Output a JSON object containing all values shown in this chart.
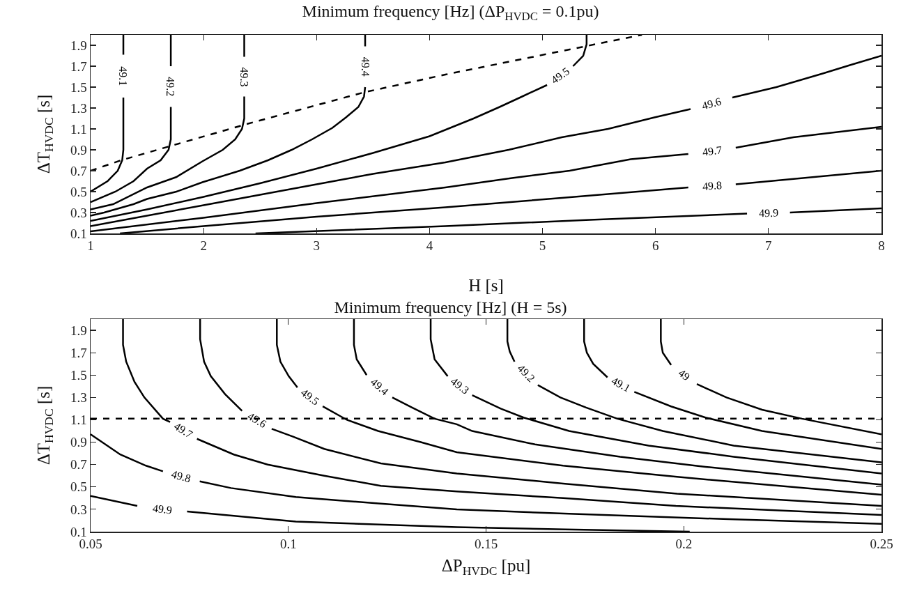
{
  "chart_data": [
    {
      "type": "line",
      "title": "Minimum frequency [Hz] (ΔP$_{HVDC}$ = 0.1pu)",
      "xlabel": "H [s]",
      "ylabel": "ΔT$_{HVDC}$ [s]",
      "xlim": [
        1,
        8
      ],
      "xticks": [
        1,
        2,
        3,
        4,
        5,
        6,
        7,
        8
      ],
      "ylim": [
        0.1,
        2.0
      ],
      "yticks": [
        0.1,
        0.3,
        0.5,
        0.7,
        0.9,
        1.1,
        1.3,
        1.5,
        1.7,
        1.9
      ],
      "grid": false,
      "line_style": "solid",
      "series": [
        {
          "name": "49.1",
          "color": "#000000",
          "x": [
            1,
            1.15,
            1.24,
            1.28,
            1.29,
            1.29,
            null,
            1.29,
            1.29
          ],
          "values": [
            0.5,
            0.6,
            0.7,
            0.8,
            0.9,
            1.4,
            null,
            1.81,
            2.0
          ]
        },
        {
          "name": "49.2",
          "color": "#000000",
          "x": [
            1,
            1.22,
            1.38,
            1.5,
            1.62,
            1.69,
            1.71,
            1.71,
            null,
            1.71,
            1.71
          ],
          "values": [
            0.4,
            0.5,
            0.6,
            0.72,
            0.8,
            0.9,
            1.0,
            1.31,
            null,
            1.7,
            2.0
          ]
        },
        {
          "name": "49.3",
          "color": "#000000",
          "x": [
            1,
            1.2,
            1.5,
            1.76,
            1.99,
            2.17,
            2.28,
            2.34,
            2.36,
            2.36,
            null,
            2.36,
            2.36
          ],
          "values": [
            0.33,
            0.38,
            0.54,
            0.64,
            0.79,
            0.9,
            1.0,
            1.1,
            1.2,
            1.41,
            null,
            1.79,
            2.0
          ]
        },
        {
          "name": "49.4",
          "color": "#000000",
          "x": [
            1,
            1.12,
            1.38,
            1.5,
            1.76,
            1.99,
            2.32,
            2.57,
            2.78,
            2.96,
            3.14,
            3.26,
            3.37,
            3.42,
            3.43,
            null,
            3.43,
            3.43
          ],
          "values": [
            0.27,
            0.3,
            0.38,
            0.43,
            0.5,
            0.59,
            0.7,
            0.8,
            0.9,
            1.0,
            1.11,
            1.21,
            1.31,
            1.41,
            1.5,
            null,
            1.89,
            2.0
          ]
        },
        {
          "name": "49.5",
          "color": "#000000",
          "x": [
            1,
            1.5,
            2,
            2.5,
            3,
            3.5,
            4,
            4.39,
            4.62,
            4.82,
            5.04,
            null,
            5.27,
            5.36,
            5.39,
            5.39
          ],
          "values": [
            0.22,
            0.33,
            0.45,
            0.58,
            0.72,
            0.87,
            1.03,
            1.2,
            1.31,
            1.41,
            1.52,
            null,
            1.7,
            1.8,
            1.91,
            2.0
          ]
        },
        {
          "name": "49.6",
          "color": "#000000",
          "x": [
            1,
            1.5,
            2,
            2.5,
            3,
            3.5,
            4.14,
            4.7,
            5.17,
            5.58,
            5.99,
            6.31,
            null,
            6.68,
            7.07,
            7.48,
            7.72,
            8
          ],
          "values": [
            0.17,
            0.27,
            0.37,
            0.47,
            0.57,
            0.67,
            0.78,
            0.9,
            1.02,
            1.1,
            1.21,
            1.29,
            null,
            1.4,
            1.5,
            1.63,
            1.71,
            1.8
          ]
        },
        {
          "name": "49.7",
          "color": "#000000",
          "x": [
            1,
            2,
            3,
            4.14,
            4.73,
            5.24,
            5.78,
            6.29,
            null,
            6.71,
            7.22,
            8
          ],
          "values": [
            0.12,
            0.25,
            0.39,
            0.54,
            0.63,
            0.7,
            0.81,
            0.86,
            null,
            0.92,
            1.02,
            1.12
          ]
        },
        {
          "name": "49.8",
          "color": "#000000",
          "x": [
            1.26,
            2,
            3,
            4.14,
            5.17,
            6.29,
            null,
            6.71,
            8
          ],
          "values": [
            0.1,
            0.17,
            0.26,
            0.35,
            0.44,
            0.54,
            null,
            0.57,
            0.7
          ]
        },
        {
          "name": "49.9",
          "color": "#000000",
          "x": [
            2.46,
            4.14,
            5.42,
            6.81,
            null,
            7.19,
            8
          ],
          "values": [
            0.1,
            0.17,
            0.23,
            0.29,
            null,
            0.3,
            0.34
          ]
        },
        {
          "color": "#000000",
          "line_style": "dashed",
          "x": [
            1,
            1.27,
            2.36,
            3.42,
            4.14,
            5.88
          ],
          "values": [
            0.7,
            0.8,
            1.14,
            1.45,
            1.62,
            2.0
          ]
        }
      ]
    },
    {
      "type": "line",
      "title": "Minimum frequency [Hz] (H = 5s)",
      "xlabel": "ΔP$_{HVDC}$ [pu]",
      "ylabel": "ΔT$_{HVDC}$ [s]",
      "xlim": [
        0.05,
        0.25
      ],
      "xticks": [
        0.05,
        0.1,
        0.15,
        0.2,
        0.25
      ],
      "ylim": [
        0.1,
        2.0
      ],
      "yticks": [
        0.1,
        0.3,
        0.5,
        0.7,
        0.9,
        1.1,
        1.3,
        1.5,
        1.7,
        1.9
      ],
      "grid": false,
      "line_style": "solid",
      "ref_lines": [
        {
          "axis": "y",
          "value": 1.11,
          "color": "#000000",
          "line_style": "dashed"
        }
      ],
      "series": [
        {
          "name": "49.9",
          "color": "#000000",
          "x": [
            0.05,
            0.0618,
            null,
            0.0744,
            0.1019,
            0.1426,
            0.17,
            0.2015
          ],
          "values": [
            0.42,
            0.33,
            null,
            0.28,
            0.19,
            0.14,
            0.12,
            0.1
          ]
        },
        {
          "name": "49.8",
          "color": "#000000",
          "x": [
            0.05,
            0.0575,
            0.064,
            0.0683,
            null,
            0.0776,
            0.0855,
            0.1019,
            0.1234,
            0.1426,
            0.171,
            0.2126,
            0.25
          ],
          "values": [
            0.97,
            0.79,
            0.69,
            0.64,
            null,
            0.55,
            0.49,
            0.41,
            0.35,
            0.3,
            0.26,
            0.21,
            0.17
          ]
        },
        {
          "name": "49.7",
          "color": "#000000",
          "x": [
            0.0582,
            0.0582,
            0.059,
            0.0611,
            0.0636,
            0.0683,
            0.0701,
            null,
            0.0769,
            0.0862,
            0.0948,
            0.1091,
            0.1234,
            0.1426,
            0.1695,
            0.198,
            0.25
          ],
          "values": [
            2.0,
            1.77,
            1.62,
            1.44,
            1.3,
            1.11,
            1.08,
            null,
            0.93,
            0.79,
            0.7,
            0.6,
            0.51,
            0.46,
            0.4,
            0.33,
            0.25
          ]
        },
        {
          "name": "49.6",
          "color": "#000000",
          "x": [
            0.0777,
            0.0777,
            0.0787,
            0.0804,
            0.084,
            0.0883,
            null,
            0.0958,
            0.1012,
            0.1091,
            0.1234,
            0.1426,
            0.1695,
            0.1983,
            0.25
          ],
          "values": [
            2.0,
            1.82,
            1.62,
            1.49,
            1.33,
            1.18,
            null,
            1.02,
            0.95,
            0.84,
            0.71,
            0.62,
            0.53,
            0.44,
            0.33
          ]
        },
        {
          "name": "49.5",
          "color": "#000000",
          "x": [
            0.0971,
            0.0971,
            0.098,
            0.1001,
            0.1023,
            null,
            0.1087,
            0.1148,
            0.1227,
            0.1335,
            0.1426,
            0.1695,
            0.1983,
            0.25
          ],
          "values": [
            2.0,
            1.77,
            1.62,
            1.49,
            1.39,
            null,
            1.22,
            1.1,
            1.0,
            0.9,
            0.81,
            0.69,
            0.59,
            0.43
          ]
        },
        {
          "name": "49.4",
          "color": "#000000",
          "x": [
            0.1166,
            0.1166,
            0.1173,
            0.1198,
            null,
            0.1263,
            0.1313,
            0.137,
            0.1426,
            0.1465,
            0.1624,
            0.1839,
            0.2055,
            0.25
          ],
          "values": [
            2.0,
            1.77,
            1.64,
            1.5,
            null,
            1.3,
            1.21,
            1.11,
            1.06,
            1.0,
            0.88,
            0.77,
            0.68,
            0.52
          ]
        },
        {
          "name": "49.3",
          "color": "#000000",
          "x": [
            0.136,
            0.136,
            0.137,
            0.1403,
            null,
            0.1465,
            0.1537,
            0.1595,
            0.171,
            0.1911,
            0.2126,
            0.25
          ],
          "values": [
            2.0,
            1.82,
            1.64,
            1.49,
            null,
            1.32,
            1.2,
            1.12,
            1.0,
            0.87,
            0.77,
            0.62
          ]
        },
        {
          "name": "49.2",
          "color": "#000000",
          "x": [
            0.1554,
            0.1554,
            0.156,
            0.1572,
            null,
            0.1631,
            0.1688,
            0.1753,
            0.1832,
            0.1947,
            0.2126,
            0.25
          ],
          "values": [
            2.0,
            1.8,
            1.71,
            1.62,
            null,
            1.41,
            1.3,
            1.21,
            1.11,
            1.0,
            0.87,
            0.72
          ]
        },
        {
          "name": "49.1",
          "color": "#000000",
          "x": [
            0.1748,
            0.1748,
            0.1755,
            0.1771,
            0.1807,
            null,
            0.1875,
            0.1968,
            0.2055,
            0.2198,
            0.25
          ],
          "values": [
            2.0,
            1.8,
            1.7,
            1.6,
            1.48,
            null,
            1.35,
            1.22,
            1.12,
            1.0,
            0.84
          ]
        },
        {
          "name": "49",
          "color": "#000000",
          "x": [
            0.1942,
            0.1942,
            0.1947,
            0.1968,
            null,
            0.2033,
            0.2108,
            0.2198,
            0.2299,
            0.25
          ],
          "values": [
            2.0,
            1.8,
            1.7,
            1.59,
            null,
            1.42,
            1.3,
            1.19,
            1.11,
            0.97
          ]
        }
      ]
    }
  ]
}
